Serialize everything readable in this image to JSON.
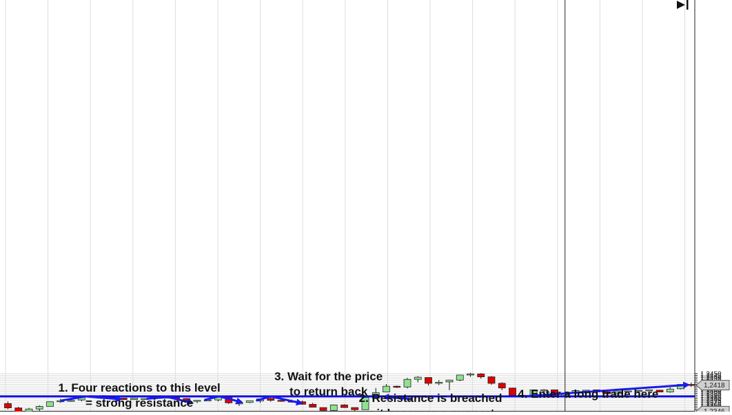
{
  "chart_data": {
    "type": "candlestick",
    "y_range": [
      1.2342,
      1.2453
    ],
    "y_ticks": [
      "1,2350",
      "1,2355",
      "1,2360",
      "1,2365",
      "1,2370",
      "1,2375",
      "1,2380",
      "1,2385",
      "1,2390",
      "1,2395",
      "1,2400",
      "1,2405",
      "1,2410",
      "1,2415",
      "1,2420",
      "1,2425",
      "1,2430",
      "1,2435",
      "1,2440",
      "1,2445",
      "1,2450"
    ],
    "y_tick_values": [
      1.235,
      1.2355,
      1.236,
      1.2365,
      1.237,
      1.2375,
      1.238,
      1.2385,
      1.239,
      1.2395,
      1.24,
      1.2405,
      1.241,
      1.2415,
      1.242,
      1.2425,
      1.243,
      1.2435,
      1.244,
      1.2445,
      1.245
    ],
    "grid": true,
    "colors": {
      "up": "#90e090",
      "down": "#e00000",
      "level_line": "#1010dd",
      "arrow": "#1a1aee",
      "grid": "#dddddd",
      "crosshair": "#222222",
      "badge_bg": "#d0d0d0"
    },
    "price_badges": [
      {
        "label": "1,2418",
        "value": 1.2418
      },
      {
        "label": "1,2346",
        "value": 1.2346
      }
    ],
    "resistance_level": 1.23867,
    "crosshair": {
      "candle_index": 53,
      "price": 1.23458
    },
    "candles": [
      {
        "o": 1.2367,
        "h": 1.2373,
        "l": 1.2351,
        "c": 1.2355
      },
      {
        "o": 1.2355,
        "h": 1.2358,
        "l": 1.2341,
        "c": 1.2343
      },
      {
        "o": 1.2345,
        "h": 1.2355,
        "l": 1.2344,
        "c": 1.2352
      },
      {
        "o": 1.2352,
        "h": 1.2362,
        "l": 1.2346,
        "c": 1.2359
      },
      {
        "o": 1.2359,
        "h": 1.2373,
        "l": 1.2359,
        "c": 1.2372
      },
      {
        "o": 1.2372,
        "h": 1.238,
        "l": 1.2369,
        "c": 1.2375
      },
      {
        "o": 1.2373,
        "h": 1.238,
        "l": 1.2372,
        "c": 1.2376
      },
      {
        "o": 1.2377,
        "h": 1.2389,
        "l": 1.2373,
        "c": 1.2387
      },
      {
        "o": 1.2387,
        "h": 1.239,
        "l": 1.2385,
        "c": 1.2389
      },
      {
        "o": 1.2389,
        "h": 1.239,
        "l": 1.2386,
        "c": 1.2386
      },
      {
        "o": 1.2386,
        "h": 1.2387,
        "l": 1.2381,
        "c": 1.2383
      },
      {
        "o": 1.2382,
        "h": 1.2382,
        "l": 1.2377,
        "c": 1.2378
      },
      {
        "o": 1.2378,
        "h": 1.2382,
        "l": 1.2377,
        "c": 1.2382
      },
      {
        "o": 1.238,
        "h": 1.2382,
        "l": 1.2378,
        "c": 1.2381
      },
      {
        "o": 1.2382,
        "h": 1.2384,
        "l": 1.2378,
        "c": 1.2384
      },
      {
        "o": 1.2383,
        "h": 1.2385,
        "l": 1.2382,
        "c": 1.2385
      },
      {
        "o": 1.2384,
        "h": 1.2385,
        "l": 1.2379,
        "c": 1.238
      },
      {
        "o": 1.2381,
        "h": 1.2382,
        "l": 1.2373,
        "c": 1.2376
      },
      {
        "o": 1.2376,
        "h": 1.2377,
        "l": 1.2368,
        "c": 1.2376
      },
      {
        "o": 1.2376,
        "h": 1.2378,
        "l": 1.2375,
        "c": 1.2377
      },
      {
        "o": 1.2377,
        "h": 1.2388,
        "l": 1.2373,
        "c": 1.2387
      },
      {
        "o": 1.2384,
        "h": 1.2386,
        "l": 1.2366,
        "c": 1.2369
      },
      {
        "o": 1.2369,
        "h": 1.237,
        "l": 1.236,
        "c": 1.2369
      },
      {
        "o": 1.237,
        "h": 1.2374,
        "l": 1.2368,
        "c": 1.2375
      },
      {
        "o": 1.2374,
        "h": 1.2381,
        "l": 1.2369,
        "c": 1.238
      },
      {
        "o": 1.2381,
        "h": 1.2386,
        "l": 1.2372,
        "c": 1.2376
      },
      {
        "o": 1.2376,
        "h": 1.238,
        "l": 1.2372,
        "c": 1.2374
      },
      {
        "o": 1.2374,
        "h": 1.2378,
        "l": 1.2369,
        "c": 1.2371
      },
      {
        "o": 1.2372,
        "h": 1.2375,
        "l": 1.2364,
        "c": 1.2365
      },
      {
        "o": 1.2365,
        "h": 1.2369,
        "l": 1.2357,
        "c": 1.2357
      },
      {
        "o": 1.2356,
        "h": 1.2356,
        "l": 1.2347,
        "c": 1.2348
      },
      {
        "o": 1.2348,
        "h": 1.2364,
        "l": 1.2347,
        "c": 1.2363
      },
      {
        "o": 1.2363,
        "h": 1.2365,
        "l": 1.2355,
        "c": 1.2356
      },
      {
        "o": 1.2356,
        "h": 1.2356,
        "l": 1.2342,
        "c": 1.235
      },
      {
        "o": 1.235,
        "h": 1.2384,
        "l": 1.235,
        "c": 1.2384
      },
      {
        "o": 1.2382,
        "h": 1.241,
        "l": 1.238,
        "c": 1.2397
      },
      {
        "o": 1.2399,
        "h": 1.2421,
        "l": 1.2398,
        "c": 1.2415
      },
      {
        "o": 1.2415,
        "h": 1.2417,
        "l": 1.241,
        "c": 1.2413
      },
      {
        "o": 1.2413,
        "h": 1.2438,
        "l": 1.2409,
        "c": 1.2434
      },
      {
        "o": 1.2434,
        "h": 1.2443,
        "l": 1.2426,
        "c": 1.244
      },
      {
        "o": 1.2439,
        "h": 1.244,
        "l": 1.2417,
        "c": 1.2423
      },
      {
        "o": 1.2423,
        "h": 1.2432,
        "l": 1.2418,
        "c": 1.2426
      },
      {
        "o": 1.2427,
        "h": 1.2433,
        "l": 1.2404,
        "c": 1.2432
      },
      {
        "o": 1.2432,
        "h": 1.2447,
        "l": 1.2429,
        "c": 1.2446
      },
      {
        "o": 1.2446,
        "h": 1.2452,
        "l": 1.2441,
        "c": 1.2449
      },
      {
        "o": 1.2449,
        "h": 1.2451,
        "l": 1.2436,
        "c": 1.2441
      },
      {
        "o": 1.2441,
        "h": 1.2443,
        "l": 1.2419,
        "c": 1.2423
      },
      {
        "o": 1.2423,
        "h": 1.2426,
        "l": 1.2404,
        "c": 1.241
      },
      {
        "o": 1.241,
        "h": 1.2411,
        "l": 1.2389,
        "c": 1.239
      },
      {
        "o": 1.239,
        "h": 1.2392,
        "l": 1.2389,
        "c": 1.239
      },
      {
        "o": 1.239,
        "h": 1.2406,
        "l": 1.2387,
        "c": 1.2405
      },
      {
        "o": 1.2405,
        "h": 1.2407,
        "l": 1.2398,
        "c": 1.2405
      },
      {
        "o": 1.2405,
        "h": 1.2406,
        "l": 1.2386,
        "c": 1.2388
      },
      {
        "o": 1.2388,
        "h": 1.2401,
        "l": 1.2386,
        "c": 1.2396
      },
      {
        "o": 1.2396,
        "h": 1.2405,
        "l": 1.2388,
        "c": 1.2403
      },
      {
        "o": 1.2403,
        "h": 1.2405,
        "l": 1.2402,
        "c": 1.2404
      },
      {
        "o": 1.2405,
        "h": 1.2406,
        "l": 1.2397,
        "c": 1.2399
      },
      {
        "o": 1.2399,
        "h": 1.24,
        "l": 1.2394,
        "c": 1.2394
      },
      {
        "o": 1.2394,
        "h": 1.24,
        "l": 1.2394,
        "c": 1.24
      },
      {
        "o": 1.24,
        "h": 1.2403,
        "l": 1.24,
        "c": 1.2402
      },
      {
        "o": 1.2401,
        "h": 1.2404,
        "l": 1.2401,
        "c": 1.2403
      },
      {
        "o": 1.2403,
        "h": 1.2405,
        "l": 1.2403,
        "c": 1.2405
      },
      {
        "o": 1.2404,
        "h": 1.2405,
        "l": 1.2399,
        "c": 1.2399
      },
      {
        "o": 1.2399,
        "h": 1.2412,
        "l": 1.2397,
        "c": 1.2407
      },
      {
        "o": 1.2408,
        "h": 1.2421,
        "l": 1.2406,
        "c": 1.242
      },
      {
        "o": 1.242,
        "h": 1.2425,
        "l": 1.2413,
        "c": 1.2418
      }
    ],
    "annotations": [
      {
        "id": "four-reactions",
        "lines": [
          "1. Four reactions to this level",
          "= strong resistance"
        ],
        "candle_index": 12.5,
        "price": 1.24005
      },
      {
        "id": "resistance-breached",
        "lines": [
          "2. Resistance is breached",
          "= it becomes a support"
        ],
        "candle_index": 40.2,
        "price": 1.23712
      },
      {
        "id": "wait-return",
        "lines": [
          "3. Wait for the price",
          "to return back"
        ],
        "candle_index": 30.5,
        "price": 1.24312
      },
      {
        "id": "enter-long",
        "lines": [
          "4. Enter a long trade here"
        ],
        "candle_index": 55.2,
        "price": 1.23826
      }
    ],
    "arrows": [
      {
        "id": "reaction-arrow-1",
        "points": [
          [
            5,
            1.2375
          ],
          [
            7.4,
            1.23867
          ],
          [
            10.7,
            1.2379
          ]
        ]
      },
      {
        "id": "reaction-arrow-2",
        "points": [
          [
            13.2,
            1.238
          ],
          [
            15.2,
            1.2385
          ],
          [
            17.5,
            1.2369
          ]
        ]
      },
      {
        "id": "reaction-arrow-3",
        "points": [
          [
            18.7,
            1.2377
          ],
          [
            20.1,
            1.2387
          ],
          [
            22.2,
            1.2371
          ]
        ]
      },
      {
        "id": "reaction-arrow-4",
        "points": [
          [
            23.6,
            1.2375
          ],
          [
            25,
            1.23867
          ],
          [
            27.9,
            1.2368
          ]
        ]
      },
      {
        "id": "breach-arrow",
        "points": [
          [
            38.5,
            1.2379
          ],
          [
            35.8,
            1.2386
          ]
        ]
      },
      {
        "id": "long-trade-arrow",
        "points": [
          [
            49.1,
            1.2387
          ],
          [
            64.7,
            1.2419
          ]
        ]
      }
    ]
  }
}
